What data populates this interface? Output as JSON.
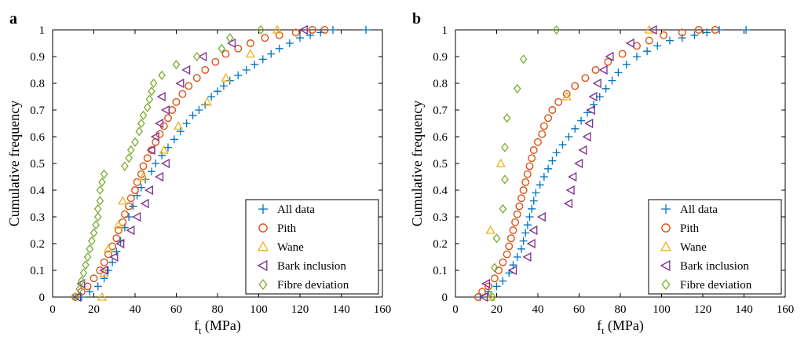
{
  "chart_data": [
    {
      "type": "scatter",
      "panel_label": "a",
      "xlabel_main": "f",
      "xlabel_sub": "t",
      "xlabel_unit": " (MPa)",
      "ylabel": "Cumulative frequency",
      "xlim": [
        0,
        160
      ],
      "ylim": [
        0,
        1
      ],
      "xticks": [
        0,
        20,
        40,
        60,
        80,
        100,
        120,
        140,
        160
      ],
      "yticks": [
        0,
        0.1,
        0.2,
        0.3,
        0.4,
        0.5,
        0.6,
        0.7,
        0.8,
        0.9,
        1
      ],
      "grid": false,
      "legend_position": "bottom-right",
      "series": [
        {
          "name": "All data",
          "marker": "plus",
          "color": "#0072BD",
          "points": [
            [
              14,
              0.0
            ],
            [
              18,
              0.02
            ],
            [
              22,
              0.04
            ],
            [
              25,
              0.07
            ],
            [
              27,
              0.1
            ],
            [
              29,
              0.13
            ],
            [
              31,
              0.17
            ],
            [
              33,
              0.21
            ],
            [
              35,
              0.26
            ],
            [
              37,
              0.3
            ],
            [
              39,
              0.34
            ],
            [
              41,
              0.38
            ],
            [
              43,
              0.41
            ],
            [
              45,
              0.44
            ],
            [
              48,
              0.47
            ],
            [
              50,
              0.5
            ],
            [
              53,
              0.53
            ],
            [
              56,
              0.56
            ],
            [
              59,
              0.59
            ],
            [
              62,
              0.62
            ],
            [
              65,
              0.65
            ],
            [
              68,
              0.68
            ],
            [
              71,
              0.7
            ],
            [
              74,
              0.72
            ],
            [
              77,
              0.75
            ],
            [
              80,
              0.77
            ],
            [
              83,
              0.79
            ],
            [
              86,
              0.81
            ],
            [
              90,
              0.83
            ],
            [
              94,
              0.85
            ],
            [
              98,
              0.87
            ],
            [
              102,
              0.89
            ],
            [
              106,
              0.91
            ],
            [
              110,
              0.93
            ],
            [
              115,
              0.95
            ],
            [
              120,
              0.97
            ],
            [
              125,
              0.98
            ],
            [
              130,
              0.99
            ],
            [
              136,
              1.0
            ],
            [
              152,
              1.0
            ]
          ]
        },
        {
          "name": "Pith",
          "marker": "circle",
          "color": "#D95319",
          "points": [
            [
              11,
              0.0
            ],
            [
              14,
              0.02
            ],
            [
              17,
              0.04
            ],
            [
              20,
              0.07
            ],
            [
              23,
              0.1
            ],
            [
              25,
              0.13
            ],
            [
              27,
              0.16
            ],
            [
              29,
              0.19
            ],
            [
              31,
              0.22
            ],
            [
              32,
              0.25
            ],
            [
              34,
              0.28
            ],
            [
              35,
              0.31
            ],
            [
              37,
              0.34
            ],
            [
              38,
              0.37
            ],
            [
              40,
              0.4
            ],
            [
              41,
              0.43
            ],
            [
              43,
              0.46
            ],
            [
              44,
              0.49
            ],
            [
              46,
              0.52
            ],
            [
              48,
              0.55
            ],
            [
              50,
              0.58
            ],
            [
              52,
              0.61
            ],
            [
              54,
              0.64
            ],
            [
              56,
              0.67
            ],
            [
              58,
              0.7
            ],
            [
              60,
              0.73
            ],
            [
              63,
              0.76
            ],
            [
              66,
              0.79
            ],
            [
              70,
              0.82
            ],
            [
              74,
              0.85
            ],
            [
              79,
              0.88
            ],
            [
              84,
              0.91
            ],
            [
              90,
              0.93
            ],
            [
              96,
              0.95
            ],
            [
              103,
              0.97
            ],
            [
              110,
              0.98
            ],
            [
              118,
              0.99
            ],
            [
              126,
              1.0
            ],
            [
              132,
              1.0
            ]
          ]
        },
        {
          "name": "Wane",
          "marker": "triangle-up",
          "color": "#EDB120",
          "points": [
            [
              24,
              0.0
            ],
            [
              25,
              0.09
            ],
            [
              27,
              0.18
            ],
            [
              32,
              0.27
            ],
            [
              34,
              0.36
            ],
            [
              44,
              0.45
            ],
            [
              54,
              0.55
            ],
            [
              61,
              0.64
            ],
            [
              75,
              0.73
            ],
            [
              84,
              0.82
            ],
            [
              96,
              0.91
            ],
            [
              109,
              1.0
            ]
          ]
        },
        {
          "name": "Bark inclusion",
          "marker": "triangle-left",
          "color": "#7E2F8E",
          "points": [
            [
              12,
              0.0
            ],
            [
              14,
              0.05
            ],
            [
              25,
              0.1
            ],
            [
              30,
              0.15
            ],
            [
              33,
              0.2
            ],
            [
              38,
              0.25
            ],
            [
              41,
              0.3
            ],
            [
              45,
              0.35
            ],
            [
              47,
              0.4
            ],
            [
              52,
              0.45
            ],
            [
              55,
              0.5
            ],
            [
              48,
              0.55
            ],
            [
              50,
              0.6
            ],
            [
              52,
              0.65
            ],
            [
              55,
              0.7
            ],
            [
              53,
              0.75
            ],
            [
              62,
              0.8
            ],
            [
              65,
              0.85
            ],
            [
              73,
              0.9
            ],
            [
              87,
              0.95
            ],
            [
              122,
              1.0
            ]
          ]
        },
        {
          "name": "Fibre deviation",
          "marker": "diamond",
          "color": "#77AC30",
          "points": [
            [
              11,
              0.0
            ],
            [
              13,
              0.03
            ],
            [
              14,
              0.06
            ],
            [
              15,
              0.09
            ],
            [
              16,
              0.12
            ],
            [
              17,
              0.15
            ],
            [
              18,
              0.18
            ],
            [
              19,
              0.21
            ],
            [
              20,
              0.24
            ],
            [
              21,
              0.27
            ],
            [
              22,
              0.3
            ],
            [
              22,
              0.33
            ],
            [
              23,
              0.36
            ],
            [
              23,
              0.4
            ],
            [
              24,
              0.43
            ],
            [
              25,
              0.46
            ],
            [
              35,
              0.49
            ],
            [
              37,
              0.52
            ],
            [
              38,
              0.55
            ],
            [
              40,
              0.58
            ],
            [
              42,
              0.62
            ],
            [
              43,
              0.65
            ],
            [
              44,
              0.68
            ],
            [
              46,
              0.71
            ],
            [
              47,
              0.74
            ],
            [
              48,
              0.77
            ],
            [
              49,
              0.8
            ],
            [
              53,
              0.83
            ],
            [
              60,
              0.87
            ],
            [
              70,
              0.9
            ],
            [
              82,
              0.93
            ],
            [
              86,
              0.97
            ],
            [
              101,
              1.0
            ]
          ]
        }
      ]
    },
    {
      "type": "scatter",
      "panel_label": "b",
      "xlabel_main": "f",
      "xlabel_sub": "t",
      "xlabel_unit": " (MPa)",
      "ylabel": "Cumulative frequency",
      "xlim": [
        0,
        160
      ],
      "ylim": [
        0,
        1
      ],
      "xticks": [
        0,
        20,
        40,
        60,
        80,
        100,
        120,
        140,
        160
      ],
      "yticks": [
        0,
        0.1,
        0.2,
        0.3,
        0.4,
        0.5,
        0.6,
        0.7,
        0.8,
        0.9,
        1
      ],
      "grid": false,
      "legend_position": "bottom-right",
      "series": [
        {
          "name": "All data",
          "marker": "plus",
          "color": "#0072BD",
          "points": [
            [
              12,
              0.0
            ],
            [
              16,
              0.02
            ],
            [
              20,
              0.04
            ],
            [
              23,
              0.06
            ],
            [
              26,
              0.09
            ],
            [
              28,
              0.12
            ],
            [
              30,
              0.15
            ],
            [
              32,
              0.18
            ],
            [
              33,
              0.21
            ],
            [
              34,
              0.24
            ],
            [
              35,
              0.27
            ],
            [
              36,
              0.3
            ],
            [
              37,
              0.33
            ],
            [
              38,
              0.36
            ],
            [
              39,
              0.39
            ],
            [
              41,
              0.42
            ],
            [
              43,
              0.45
            ],
            [
              45,
              0.48
            ],
            [
              47,
              0.51
            ],
            [
              49,
              0.54
            ],
            [
              52,
              0.57
            ],
            [
              55,
              0.6
            ],
            [
              58,
              0.63
            ],
            [
              61,
              0.66
            ],
            [
              64,
              0.69
            ],
            [
              67,
              0.72
            ],
            [
              70,
              0.75
            ],
            [
              73,
              0.78
            ],
            [
              76,
              0.81
            ],
            [
              79,
              0.84
            ],
            [
              83,
              0.87
            ],
            [
              88,
              0.9
            ],
            [
              93,
              0.92
            ],
            [
              98,
              0.94
            ],
            [
              104,
              0.96
            ],
            [
              110,
              0.97
            ],
            [
              116,
              0.98
            ],
            [
              122,
              0.99
            ],
            [
              128,
              1.0
            ],
            [
              141,
              1.0
            ]
          ]
        },
        {
          "name": "Pith",
          "marker": "circle",
          "color": "#D95319",
          "points": [
            [
              11,
              0.0
            ],
            [
              13,
              0.02
            ],
            [
              16,
              0.04
            ],
            [
              19,
              0.07
            ],
            [
              21,
              0.1
            ],
            [
              23,
              0.13
            ],
            [
              25,
              0.16
            ],
            [
              26,
              0.19
            ],
            [
              27,
              0.22
            ],
            [
              28,
              0.25
            ],
            [
              29,
              0.28
            ],
            [
              30,
              0.31
            ],
            [
              31,
              0.34
            ],
            [
              32,
              0.37
            ],
            [
              33,
              0.4
            ],
            [
              34,
              0.43
            ],
            [
              35,
              0.46
            ],
            [
              36,
              0.49
            ],
            [
              37,
              0.52
            ],
            [
              38,
              0.55
            ],
            [
              40,
              0.58
            ],
            [
              42,
              0.61
            ],
            [
              43,
              0.64
            ],
            [
              45,
              0.67
            ],
            [
              47,
              0.7
            ],
            [
              50,
              0.73
            ],
            [
              54,
              0.76
            ],
            [
              58,
              0.79
            ],
            [
              63,
              0.82
            ],
            [
              68,
              0.85
            ],
            [
              74,
              0.88
            ],
            [
              81,
              0.91
            ],
            [
              88,
              0.94
            ],
            [
              94,
              0.96
            ],
            [
              101,
              0.98
            ],
            [
              110,
              0.99
            ],
            [
              118,
              1.0
            ],
            [
              126,
              1.0
            ]
          ]
        },
        {
          "name": "Wane",
          "marker": "triangle-up",
          "color": "#EDB120",
          "points": [
            [
              17,
              0.0
            ],
            [
              17,
              0.25
            ],
            [
              22,
              0.5
            ],
            [
              54,
              0.75
            ],
            [
              94,
              1.0
            ]
          ]
        },
        {
          "name": "Bark inclusion",
          "marker": "triangle-left",
          "color": "#7E2F8E",
          "points": [
            [
              14,
              0.0
            ],
            [
              15,
              0.05
            ],
            [
              28,
              0.1
            ],
            [
              35,
              0.15
            ],
            [
              37,
              0.2
            ],
            [
              38,
              0.25
            ],
            [
              42,
              0.3
            ],
            [
              55,
              0.35
            ],
            [
              56,
              0.4
            ],
            [
              57,
              0.45
            ],
            [
              60,
              0.5
            ],
            [
              62,
              0.55
            ],
            [
              64,
              0.6
            ],
            [
              65,
              0.65
            ],
            [
              66,
              0.7
            ],
            [
              67,
              0.75
            ],
            [
              69,
              0.8
            ],
            [
              72,
              0.85
            ],
            [
              75,
              0.9
            ],
            [
              85,
              0.95
            ],
            [
              96,
              1.0
            ]
          ]
        },
        {
          "name": "Fibre deviation",
          "marker": "diamond",
          "color": "#77AC30",
          "points": [
            [
              18,
              0.0
            ],
            [
              19,
              0.11
            ],
            [
              20,
              0.22
            ],
            [
              23,
              0.33
            ],
            [
              24,
              0.44
            ],
            [
              24,
              0.56
            ],
            [
              25,
              0.67
            ],
            [
              30,
              0.78
            ],
            [
              33,
              0.89
            ],
            [
              49,
              1.0
            ]
          ]
        }
      ]
    }
  ]
}
